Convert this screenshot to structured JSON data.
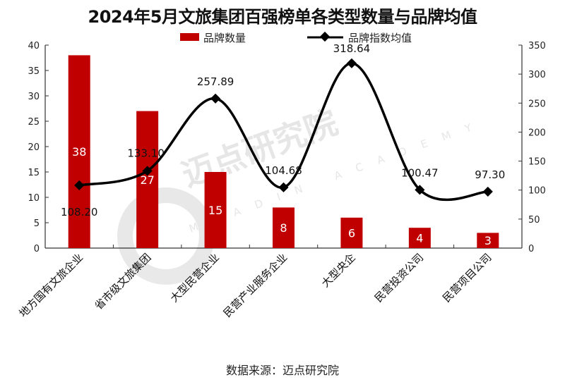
{
  "title": "2024年5月文旅集团百强榜单各类型数量与品牌均值",
  "legend": {
    "bar_label": "品牌数量",
    "line_label": "品牌指数均值"
  },
  "source": "数据来源：迈点研究院",
  "watermark": {
    "text": "迈点研究院",
    "sub": "MEADIN ACADEMY"
  },
  "colors": {
    "bar": "#c00000",
    "line": "#000000"
  },
  "chart_data": {
    "type": "bar",
    "title": "2024年5月文旅集团百强榜单各类型数量与品牌均值",
    "categories": [
      "地方国有文旅企业",
      "省市级文旅集团",
      "大型民营企业",
      "民营产业服务企业",
      "大型央企",
      "民营投资公司",
      "民营项目公司"
    ],
    "series": [
      {
        "name": "品牌数量",
        "type": "bar",
        "axis": "left",
        "values": [
          38,
          27,
          15,
          8,
          6,
          4,
          3
        ]
      },
      {
        "name": "品牌指数均值",
        "type": "line",
        "axis": "right",
        "values": [
          108.2,
          133.1,
          257.89,
          104.68,
          318.64,
          100.47,
          97.3
        ],
        "labels": [
          "108.20",
          "133.10",
          "257.89",
          "104.68",
          "318.64",
          "100.47",
          "97.30"
        ]
      }
    ],
    "left_axis": {
      "ylim": [
        0,
        40
      ],
      "ticks": [
        "0",
        "5",
        "10",
        "15",
        "20",
        "25",
        "30",
        "35",
        "40"
      ]
    },
    "right_axis": {
      "ylim": [
        0,
        350
      ],
      "ticks": [
        "0",
        "50",
        "100",
        "150",
        "200",
        "250",
        "300",
        "350"
      ]
    },
    "xlabel": "",
    "ylabel": "",
    "grid": false,
    "legend_position": "top"
  }
}
